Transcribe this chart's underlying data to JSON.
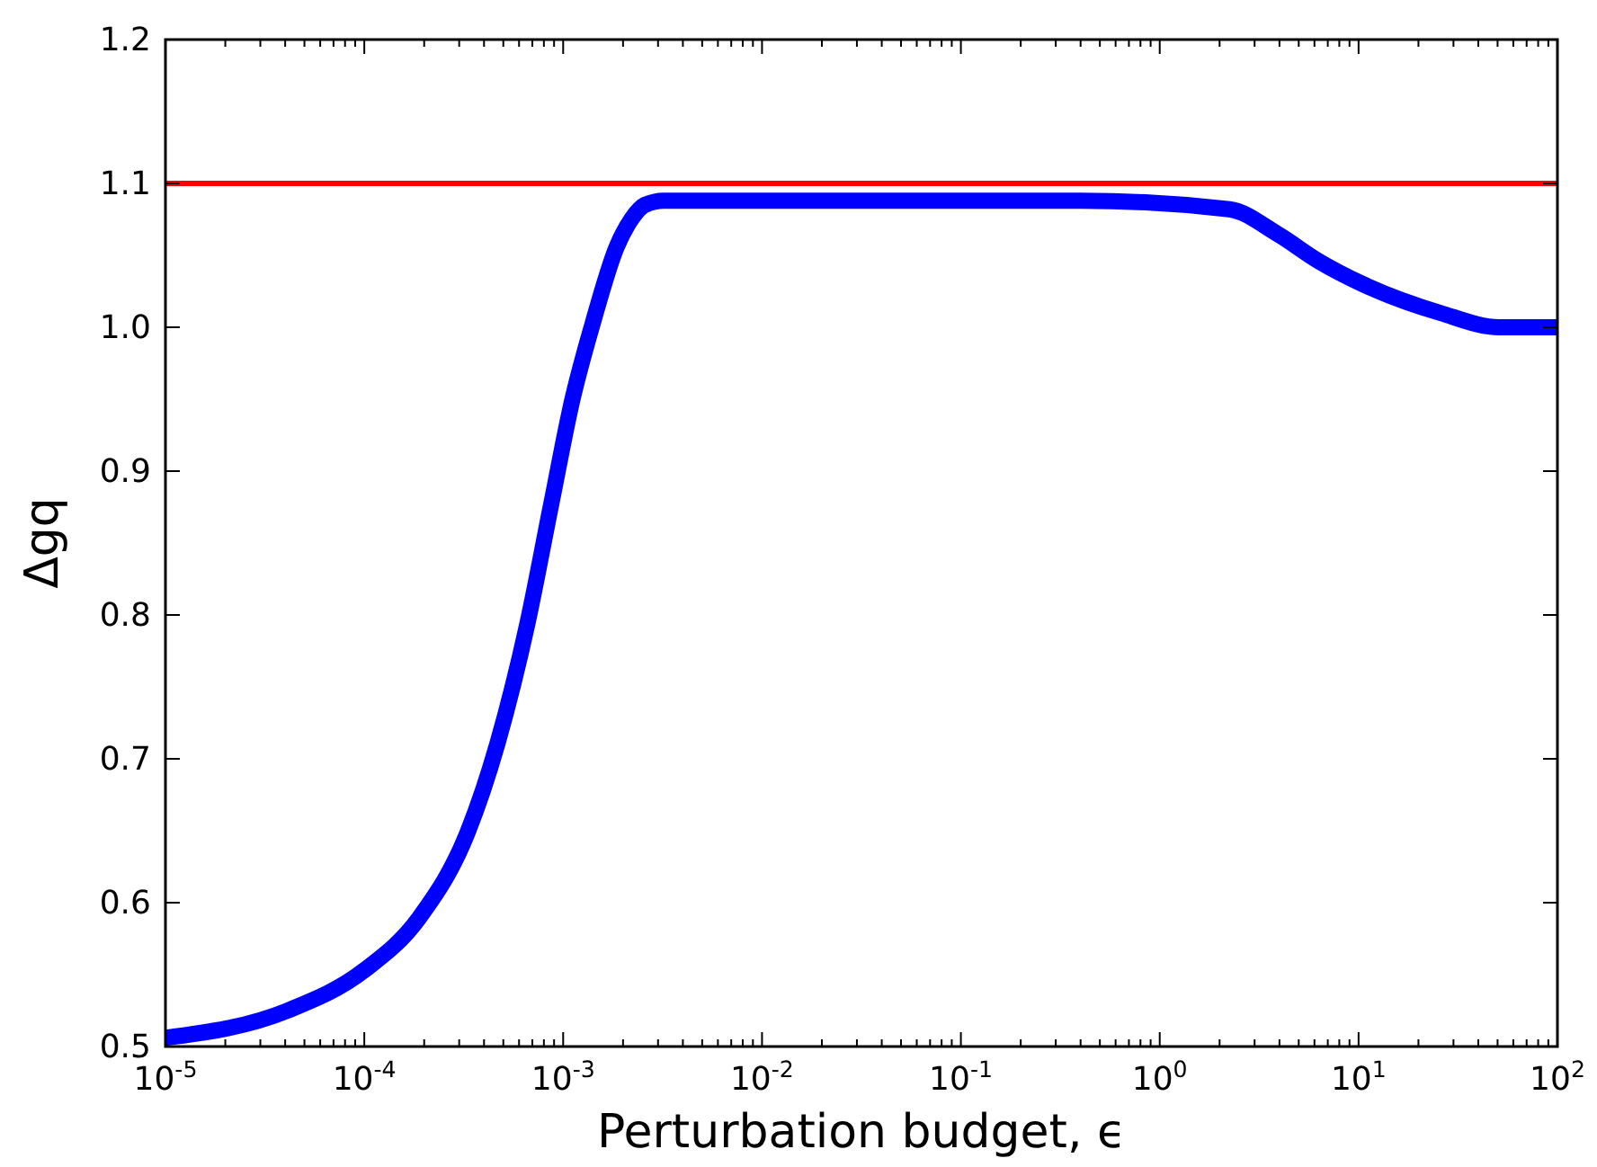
{
  "chart_data": {
    "type": "line",
    "xlabel": "Perturbation budget, ϵ",
    "ylabel": "Δgq",
    "log": "x",
    "xlim": [
      1e-05,
      100
    ],
    "ylim": [
      0.5,
      1.2
    ],
    "xticks": [
      {
        "value": 1e-05,
        "label": "10$^{-5}$"
      },
      {
        "value": 0.0001,
        "label": "10$^{-4}$"
      },
      {
        "value": 0.001,
        "label": "10$^{-3}$"
      },
      {
        "value": 0.01,
        "label": "10$^{-2}$"
      },
      {
        "value": 0.1,
        "label": "10$^{-1}$"
      },
      {
        "value": 1,
        "label": "10$^{0}$"
      },
      {
        "value": 10,
        "label": "10$^{1}$"
      },
      {
        "value": 100,
        "label": "10$^{2}$"
      }
    ],
    "yticks": [
      0.5,
      0.6,
      0.7,
      0.8,
      0.9,
      {
        "value": 1,
        "label": "1.0"
      },
      1.1,
      1.2
    ],
    "grid": false,
    "line_style": "solid",
    "ref_lines": [
      {
        "axis": "y",
        "value": 1.1,
        "color": "#ff0000",
        "line_style": "solid"
      }
    ],
    "series": [
      {
        "color": "#0000ff",
        "x": [
          1e-05,
          4.12e-05,
          0.0001,
          0.00019,
          0.000331,
          0.000468,
          0.000661,
          0.000871,
          0.00111,
          0.00141,
          0.00186,
          0.0022,
          0.00257,
          0.0032,
          0.005,
          0.01,
          0.1,
          0.4,
          2.24,
          3.9,
          6.3,
          10.5,
          25.7,
          51,
          100
        ],
        "values": [
          0.506,
          0.525,
          0.553,
          0.59,
          0.649,
          0.711,
          0.794,
          0.877,
          0.949,
          1.003,
          1.056,
          1.075,
          1.085,
          1.088,
          1.088,
          1.088,
          1.088,
          1.088,
          1.082,
          1.065,
          1.046,
          1.03,
          1.01,
          1.0,
          1.0
        ]
      }
    ]
  }
}
